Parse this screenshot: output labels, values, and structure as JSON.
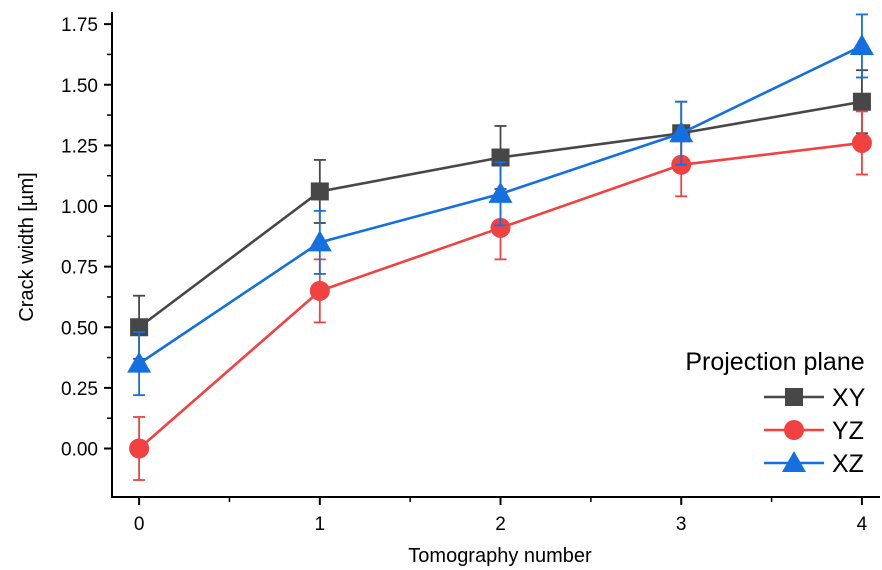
{
  "chart_data": {
    "type": "line",
    "title": "",
    "xlabel": "Tomography number",
    "ylabel": "Crack width [µm]",
    "x": [
      0,
      1,
      2,
      3,
      4
    ],
    "xlim": [
      -0.15,
      4.1
    ],
    "ylim": [
      -0.2,
      1.8
    ],
    "xticks": [
      "0",
      "1",
      "2",
      "3",
      "4"
    ],
    "yticks": [
      "0.00",
      "0.25",
      "0.50",
      "0.75",
      "1.00",
      "1.25",
      "1.50",
      "1.75"
    ],
    "ytick_values": [
      0,
      0.25,
      0.5,
      0.75,
      1.0,
      1.25,
      1.5,
      1.75
    ],
    "grid": false,
    "legend": {
      "title": "Projection plane",
      "position": "bottom-right"
    },
    "series": [
      {
        "name": "XY",
        "color": "#474747",
        "marker": "square",
        "values": [
          0.5,
          1.06,
          1.2,
          1.3,
          1.43
        ],
        "errors": [
          0.13,
          0.13,
          0.13,
          0.13,
          0.13
        ]
      },
      {
        "name": "YZ",
        "color": "#f14141",
        "marker": "circle",
        "values": [
          0.0,
          0.65,
          0.91,
          1.17,
          1.26
        ],
        "errors": [
          0.13,
          0.13,
          0.13,
          0.13,
          0.13
        ]
      },
      {
        "name": "XZ",
        "color": "#1470e0",
        "marker": "triangle",
        "values": [
          0.35,
          0.85,
          1.05,
          1.3,
          1.66
        ],
        "errors": [
          0.13,
          0.13,
          0.13,
          0.13,
          0.13
        ]
      }
    ]
  }
}
